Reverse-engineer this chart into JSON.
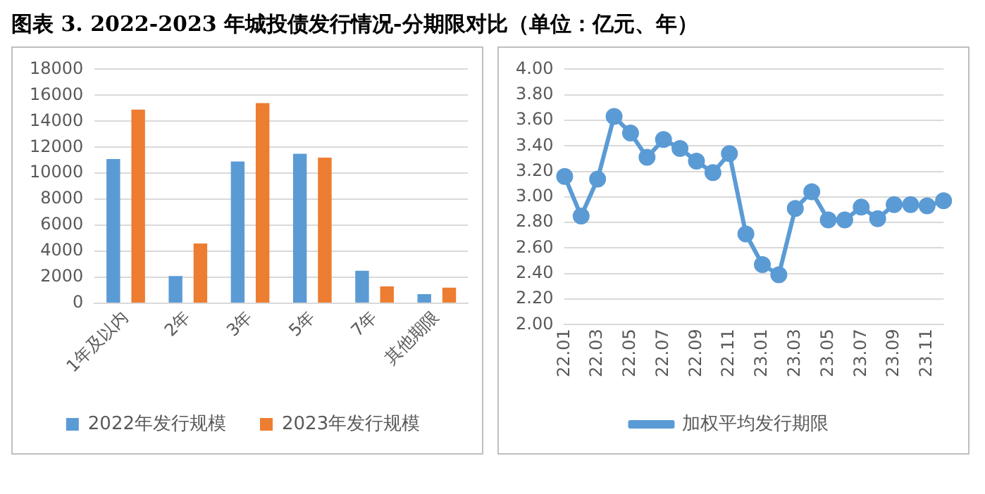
{
  "chart_data": [
    {
      "type": "bar",
      "title": "图表 3. 2022-2023 年城投债发行情况-分期限对比（单位：亿元、年）",
      "categories": [
        "1年及以内",
        "2年",
        "3年",
        "5年",
        "7年",
        "其他期限"
      ],
      "series": [
        {
          "name": "2022年发行规模",
          "color": "#5b9bd5",
          "values": [
            11100,
            2100,
            10900,
            11500,
            2500,
            700
          ]
        },
        {
          "name": "2023年发行规模",
          "color": "#ed7d31",
          "values": [
            14900,
            4600,
            15400,
            11200,
            1300,
            1200
          ]
        }
      ],
      "ylim": [
        0,
        18000
      ],
      "yticks": [
        0,
        2000,
        4000,
        6000,
        8000,
        10000,
        12000,
        14000,
        16000,
        18000
      ],
      "grid": "y",
      "legend": "bottom"
    },
    {
      "type": "line",
      "categories": [
        "22.01",
        null,
        "22.03",
        null,
        "22.05",
        null,
        "22.07",
        null,
        "22.09",
        null,
        "22.11",
        null,
        "23.01",
        null,
        "23.03",
        null,
        "23.05",
        null,
        "23.07",
        null,
        "23.09",
        null,
        "23.11",
        null
      ],
      "series": [
        {
          "name": "加权平均发行期限",
          "color": "#5b9bd5",
          "values": [
            3.16,
            2.85,
            3.14,
            3.63,
            3.5,
            3.31,
            3.45,
            3.38,
            3.28,
            3.19,
            3.34,
            2.71,
            2.47,
            2.39,
            2.91,
            3.04,
            2.82,
            2.82,
            2.92,
            2.83,
            2.94,
            2.94,
            2.93,
            2.97
          ]
        }
      ],
      "ylim": [
        2.0,
        4.0
      ],
      "yticks": [
        {
          "value": 2.0,
          "label": "2.00"
        },
        {
          "value": 2.2,
          "label": "2.20"
        },
        {
          "value": 2.4,
          "label": "2.40"
        },
        {
          "value": 2.6,
          "label": "2.60"
        },
        {
          "value": 2.8,
          "label": "2.80"
        },
        {
          "value": 3.0,
          "label": "3.00"
        },
        {
          "value": 3.2,
          "label": "3.20"
        },
        {
          "value": 3.4,
          "label": "3.40"
        },
        {
          "value": 3.6,
          "label": "3.60"
        },
        {
          "value": 3.8,
          "label": "3.80"
        },
        {
          "value": 4.0,
          "label": "4.00"
        }
      ],
      "grid": "y",
      "legend": "bottom",
      "marker": "circle",
      "line_style": "solid"
    }
  ]
}
